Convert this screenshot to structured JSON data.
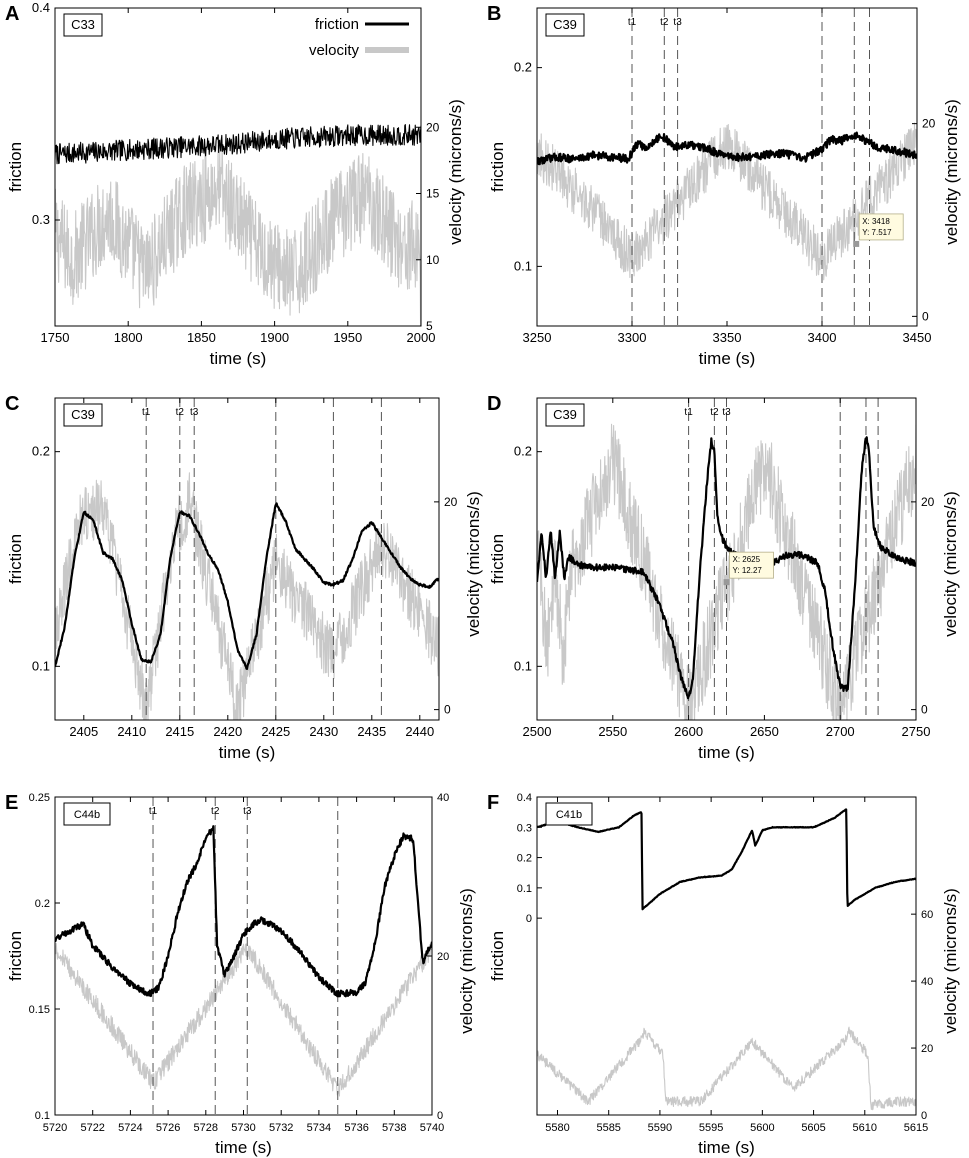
{
  "figure": {
    "panels": [
      "A",
      "B",
      "C",
      "D",
      "E",
      "F"
    ]
  },
  "chart_data": [
    {
      "panel": "A",
      "type": "line",
      "sample": "C33",
      "xlabel": "time (s)",
      "ylabel": "friction",
      "y2label": "velocity (microns/s)",
      "xlim": [
        1750,
        2000
      ],
      "ylim": [
        0.25,
        0.4
      ],
      "y2lim": [
        5,
        29
      ],
      "xticks": [
        1750,
        1800,
        1850,
        1900,
        1950,
        2000
      ],
      "yticks": [
        0.3,
        0.4
      ],
      "y2ticks": [
        5,
        10,
        15,
        20
      ],
      "legend": [
        {
          "label": "friction",
          "color": "#000000"
        },
        {
          "label": "velocity",
          "color": "#c8c8c8"
        }
      ],
      "friction": {
        "x": [
          1750,
          1775,
          1800,
          1825,
          1850,
          1875,
          1900,
          1925,
          1950,
          1975,
          2000
        ],
        "y": [
          0.331,
          0.332,
          0.333,
          0.334,
          0.335,
          0.336,
          0.338,
          0.339,
          0.34,
          0.34,
          0.34
        ],
        "noise": 0.005
      },
      "velocity": {
        "x": [
          1750,
          1762,
          1787,
          1812,
          1837,
          1862,
          1887,
          1912,
          1937,
          1962,
          1987,
          1999,
          2000
        ],
        "y": [
          12,
          10,
          13.5,
          9,
          13.5,
          15.5,
          11,
          8.5,
          12.5,
          15,
          11,
          11,
          5
        ],
        "band": 3.5
      }
    },
    {
      "panel": "B",
      "type": "line",
      "sample": "C39",
      "xlabel": "time (s)",
      "ylabel": "friction",
      "y2label": "velocity (microns/s)",
      "xlim": [
        3250,
        3450
      ],
      "ylim": [
        0.07,
        0.23
      ],
      "y2lim": [
        -1,
        32
      ],
      "xticks": [
        3250,
        3300,
        3350,
        3400,
        3450
      ],
      "yticks": [
        0.1,
        0.2
      ],
      "y2ticks": [
        0,
        20
      ],
      "vlines": [
        3300,
        3317,
        3324,
        3400,
        3417,
        3425
      ],
      "vline_labels": [
        {
          "x": 3300,
          "text": "t1"
        },
        {
          "x": 3317,
          "text": "t2"
        },
        {
          "x": 3324,
          "text": "t3"
        }
      ],
      "datatip": {
        "x": 3418,
        "y": 7.517,
        "line1": "X: 3418",
        "line2": "Y: 7.517"
      },
      "friction": {
        "x": [
          3250,
          3260,
          3270,
          3280,
          3290,
          3298,
          3303,
          3308,
          3312,
          3317,
          3322,
          3330,
          3340,
          3350,
          3360,
          3370,
          3380,
          3390,
          3400,
          3405,
          3410,
          3415,
          3420,
          3425,
          3430,
          3440,
          3450
        ],
        "y": [
          0.153,
          0.155,
          0.154,
          0.156,
          0.155,
          0.154,
          0.162,
          0.159,
          0.164,
          0.165,
          0.16,
          0.161,
          0.159,
          0.155,
          0.155,
          0.156,
          0.157,
          0.154,
          0.159,
          0.164,
          0.163,
          0.166,
          0.165,
          0.162,
          0.16,
          0.158,
          0.156
        ],
        "noise": 0.002
      },
      "velocity": {
        "x": [
          3250,
          3275,
          3300,
          3325,
          3350,
          3375,
          3400,
          3425,
          3450
        ],
        "y": [
          17,
          12,
          6,
          12,
          18,
          12,
          6,
          12,
          18
        ],
        "band": 2.5
      }
    },
    {
      "panel": "C",
      "type": "line",
      "sample": "C39",
      "xlabel": "time (s)",
      "ylabel": "friction",
      "y2label": "velocity (microns/s)",
      "xlim": [
        2402,
        2442
      ],
      "ylim": [
        0.075,
        0.225
      ],
      "y2lim": [
        -1,
        30
      ],
      "xticks": [
        2405,
        2410,
        2415,
        2420,
        2425,
        2430,
        2435,
        2440
      ],
      "yticks": [
        0.1,
        0.2
      ],
      "y2ticks": [
        0,
        20
      ],
      "vlines": [
        2411.5,
        2415,
        2416.5,
        2425,
        2431,
        2436
      ],
      "vline_labels": [
        {
          "x": 2411.5,
          "text": "t1"
        },
        {
          "x": 2415,
          "text": "t2"
        },
        {
          "x": 2416.5,
          "text": "t3"
        }
      ],
      "friction": {
        "x": [
          2402,
          2403,
          2404,
          2405,
          2406,
          2407,
          2408,
          2409,
          2410,
          2411,
          2412,
          2413,
          2414,
          2415,
          2416,
          2417,
          2418,
          2419,
          2420,
          2421,
          2422,
          2423,
          2424,
          2425,
          2426,
          2427,
          2428,
          2429,
          2430,
          2431,
          2432,
          2433,
          2434,
          2435,
          2436,
          2437,
          2438,
          2439,
          2440,
          2441,
          2442
        ],
        "y": [
          0.1,
          0.118,
          0.15,
          0.172,
          0.168,
          0.153,
          0.15,
          0.14,
          0.12,
          0.103,
          0.102,
          0.115,
          0.15,
          0.172,
          0.17,
          0.162,
          0.152,
          0.145,
          0.13,
          0.108,
          0.099,
          0.115,
          0.15,
          0.176,
          0.168,
          0.155,
          0.15,
          0.145,
          0.139,
          0.138,
          0.14,
          0.15,
          0.163,
          0.167,
          0.16,
          0.153,
          0.146,
          0.141,
          0.138,
          0.137,
          0.141
        ],
        "noise": 0.0006
      },
      "velocity": {
        "x": [
          2402,
          2404.5,
          2407,
          2411.5,
          2414.5,
          2416,
          2421,
          2425,
          2431,
          2436,
          2442
        ],
        "y": [
          7,
          18,
          20,
          0,
          17,
          20,
          0,
          14,
          5,
          16,
          6
        ],
        "band": 3
      }
    },
    {
      "panel": "D",
      "type": "line",
      "sample": "C39",
      "xlabel": "time (s)",
      "ylabel": "friction",
      "y2label": "velocity (microns/s)",
      "xlim": [
        2500,
        2750
      ],
      "ylim": [
        0.075,
        0.225
      ],
      "y2lim": [
        -1,
        30
      ],
      "xticks": [
        2500,
        2550,
        2600,
        2650,
        2700,
        2750
      ],
      "yticks": [
        0.1,
        0.2
      ],
      "y2ticks": [
        0,
        20
      ],
      "vlines": [
        2600,
        2617,
        2625,
        2700,
        2717,
        2725
      ],
      "vline_labels": [
        {
          "x": 2600,
          "text": "t1"
        },
        {
          "x": 2617,
          "text": "t2"
        },
        {
          "x": 2625,
          "text": "t3"
        }
      ],
      "datatip": {
        "x": 2625,
        "y": 12.27,
        "line1": "X: 2625",
        "line2": "Y: 12.27"
      },
      "friction": {
        "x": [
          2500,
          2503,
          2506,
          2509,
          2512,
          2515,
          2518,
          2521,
          2524,
          2527,
          2530,
          2540,
          2550,
          2560,
          2570,
          2580,
          2590,
          2595,
          2600,
          2603,
          2607,
          2612,
          2615,
          2617,
          2619,
          2622,
          2625,
          2635,
          2645,
          2655,
          2665,
          2675,
          2685,
          2690,
          2695,
          2700,
          2705,
          2710,
          2714,
          2717,
          2719,
          2722,
          2727,
          2740,
          2750
        ],
        "y": [
          0.14,
          0.163,
          0.141,
          0.163,
          0.141,
          0.163,
          0.141,
          0.151,
          0.149,
          0.147,
          0.147,
          0.146,
          0.146,
          0.145,
          0.144,
          0.13,
          0.11,
          0.095,
          0.085,
          0.095,
          0.14,
          0.185,
          0.205,
          0.2,
          0.17,
          0.16,
          0.155,
          0.15,
          0.147,
          0.148,
          0.152,
          0.152,
          0.148,
          0.135,
          0.11,
          0.09,
          0.09,
          0.14,
          0.19,
          0.207,
          0.2,
          0.165,
          0.155,
          0.15,
          0.148
        ],
        "noise": 0.0015
      },
      "velocity": {
        "x": [
          2500,
          2507,
          2512,
          2517,
          2522,
          2550,
          2600,
          2650,
          2700,
          2750
        ],
        "y": [
          16,
          6,
          14,
          5,
          13,
          24,
          0,
          24,
          0,
          24
        ],
        "band": 4
      }
    },
    {
      "panel": "E",
      "type": "line",
      "sample": "C44b",
      "xlabel": "time (s)",
      "ylabel": "friction",
      "y2label": "velocity (microns/s)",
      "xlim": [
        5720,
        5740
      ],
      "ylim": [
        0.1,
        0.25
      ],
      "y2lim": [
        0,
        40
      ],
      "xticks": [
        5720,
        5722,
        5724,
        5726,
        5728,
        5730,
        5732,
        5734,
        5736,
        5738,
        5740
      ],
      "yticks": [
        0.1,
        0.15,
        0.2,
        0.25
      ],
      "y2ticks": [
        0,
        20,
        40
      ],
      "vlines": [
        5725.2,
        5728.5,
        5730.2,
        5735
      ],
      "vline_labels": [
        {
          "x": 5725.2,
          "text": "t1"
        },
        {
          "x": 5728.5,
          "text": "t2"
        },
        {
          "x": 5730.2,
          "text": "t3"
        }
      ],
      "friction": {
        "x": [
          5720,
          5721,
          5721.5,
          5722,
          5723,
          5724,
          5725,
          5725.5,
          5726,
          5726.5,
          5727,
          5727.5,
          5728,
          5728.4,
          5728.6,
          5729,
          5729.5,
          5730,
          5730.5,
          5731,
          5732,
          5733,
          5734,
          5735,
          5736,
          5736.5,
          5737,
          5737.5,
          5738,
          5738.5,
          5739,
          5739.5,
          5740
        ],
        "y": [
          0.183,
          0.188,
          0.19,
          0.18,
          0.17,
          0.162,
          0.157,
          0.16,
          0.175,
          0.195,
          0.21,
          0.218,
          0.23,
          0.236,
          0.18,
          0.166,
          0.175,
          0.185,
          0.19,
          0.192,
          0.187,
          0.177,
          0.165,
          0.157,
          0.158,
          0.163,
          0.182,
          0.208,
          0.222,
          0.232,
          0.23,
          0.172,
          0.182
        ],
        "noise": 0.0015
      },
      "velocity": {
        "x": [
          5720,
          5725.2,
          5730.2,
          5735,
          5740
        ],
        "y": [
          21,
          4,
          21,
          3,
          21
        ],
        "band": 1.2
      }
    },
    {
      "panel": "F",
      "type": "line",
      "sample": "C41b",
      "xlabel": "time (s)",
      "ylabel": "friction",
      "y2label": "velocity (microns/s)",
      "xlim": [
        5578,
        5615
      ],
      "ylim": [
        -0.65,
        0.4
      ],
      "y2lim": [
        0,
        95
      ],
      "xticks": [
        5580,
        5585,
        5590,
        5595,
        5600,
        5605,
        5610,
        5615
      ],
      "yticks": [
        0,
        0.1,
        0.2,
        0.3,
        0.4
      ],
      "y2ticks": [
        0,
        20,
        40,
        60
      ],
      "friction": {
        "x": [
          5578,
          5580,
          5582,
          5584,
          5586,
          5587.5,
          5588.2,
          5588.3,
          5589,
          5590,
          5592,
          5594,
          5596,
          5597,
          5598,
          5599,
          5599.3,
          5599.6,
          5600,
          5601,
          5603,
          5605,
          5607,
          5608.2,
          5608.3,
          5609,
          5610,
          5611,
          5613,
          5615
        ],
        "y": [
          0.3,
          0.32,
          0.3,
          0.285,
          0.3,
          0.34,
          0.35,
          0.03,
          0.05,
          0.08,
          0.12,
          0.135,
          0.14,
          0.16,
          0.22,
          0.29,
          0.24,
          0.26,
          0.29,
          0.3,
          0.3,
          0.3,
          0.33,
          0.36,
          0.04,
          0.06,
          0.08,
          0.1,
          0.12,
          0.13
        ],
        "noise": 0.001
      },
      "velocity": {
        "x": [
          5578,
          5583,
          5588,
          5588.5,
          5590.3,
          5590.6,
          5594,
          5599,
          5603,
          5608,
          5608.5,
          5610.3,
          5610.6,
          5613,
          5615
        ],
        "y": [
          18,
          4,
          22,
          25,
          18,
          4,
          4,
          22,
          8,
          22,
          25,
          18,
          3,
          4,
          4
        ],
        "band": 1.5
      }
    }
  ]
}
